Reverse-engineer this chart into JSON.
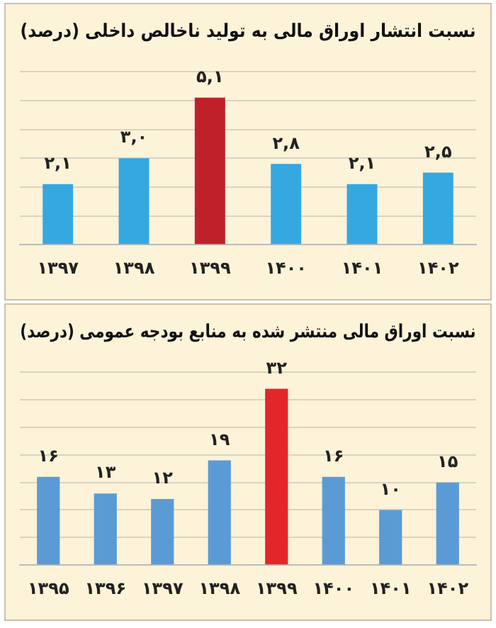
{
  "chart_data": [
    {
      "type": "bar",
      "title": "نسبت انتشار اوراق مالی به تولید ناخالص داخلی (درصد)",
      "categories": [
        "۱۳۹۷",
        "۱۳۹۸",
        "۱۳۹۹",
        "۱۴۰۰",
        "۱۴۰۱",
        "۱۴۰۲"
      ],
      "values": [
        2.1,
        3.0,
        5.1,
        2.8,
        2.1,
        2.5
      ],
      "colors": [
        "#35a8e0",
        "#35a8e0",
        "#c0202a",
        "#35a8e0",
        "#35a8e0",
        "#35a8e0"
      ],
      "value_labels": [
        "۲,۱",
        "۳,۰",
        "۵,۱",
        "۲,۸",
        "۲,۱",
        "۲,۵"
      ],
      "ylim": [
        0,
        6
      ],
      "yticks": [
        {
          "value": 0,
          "label": null
        },
        {
          "value": 1,
          "label": null
        },
        {
          "value": 2,
          "label": null
        },
        {
          "value": 3,
          "label": null
        },
        {
          "value": 4,
          "label": null
        },
        {
          "value": 5,
          "label": null
        },
        {
          "value": 6,
          "label": null
        }
      ],
      "grid": "y",
      "tick_labels": "x",
      "legend": false
    },
    {
      "type": "bar",
      "title": "نسبت اوراق مالی منتشر شده به منابع بودجه عمومی (درصد)",
      "categories": [
        "۱۳۹۵",
        "۱۳۹۶",
        "۱۳۹۷",
        "۱۳۹۸",
        "۱۳۹۹",
        "۱۴۰۰",
        "۱۴۰۱",
        "۱۴۰۲"
      ],
      "values": [
        16,
        13,
        12,
        19,
        32,
        16,
        10,
        15
      ],
      "colors": [
        "#5b9bd5",
        "#5b9bd5",
        "#5b9bd5",
        "#5b9bd5",
        "#e3262a",
        "#5b9bd5",
        "#5b9bd5",
        "#5b9bd5"
      ],
      "value_labels": [
        "۱۶",
        "۱۳",
        "۱۲",
        "۱۹",
        "۳۲",
        "۱۶",
        "۱۰",
        "۱۵"
      ],
      "ylim": [
        0,
        35
      ],
      "yticks": [
        {
          "value": 0,
          "label": null
        },
        {
          "value": 5,
          "label": null
        },
        {
          "value": 10,
          "label": null
        },
        {
          "value": 15,
          "label": null
        },
        {
          "value": 20,
          "label": null
        },
        {
          "value": 25,
          "label": null
        },
        {
          "value": 30,
          "label": null
        },
        {
          "value": 35,
          "label": null
        }
      ],
      "grid": "y",
      "tick_labels": "x",
      "legend": false
    }
  ]
}
